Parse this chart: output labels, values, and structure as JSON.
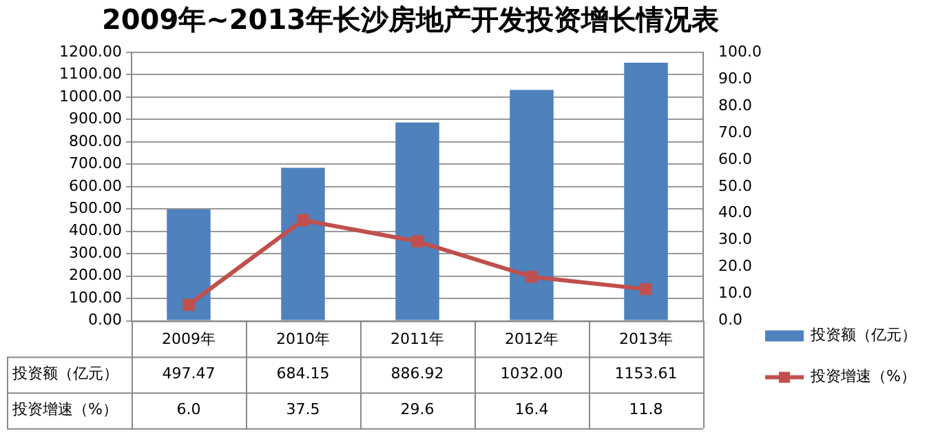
{
  "chart_data": {
    "type": "bar",
    "title": "2009年~2013年长沙房地产开发投资增长情况表",
    "categories": [
      "2009年",
      "2010年",
      "2011年",
      "2012年",
      "2013年"
    ],
    "series": [
      {
        "name": "投资额（亿元）",
        "color": "#4f81bd",
        "values": [
          497.47,
          684.15,
          886.92,
          1032.0,
          1153.61
        ],
        "value_labels": [
          "497.47",
          "684.15",
          "886.92",
          "1032.00",
          "1153.61"
        ]
      },
      {
        "name": "投资增速（%）",
        "type": "line",
        "axis": "y2",
        "color": "#c0504d",
        "values": [
          6.0,
          37.5,
          29.6,
          16.4,
          11.8
        ],
        "value_labels": [
          "6.0",
          "37.5",
          "29.6",
          "16.4",
          "11.8"
        ]
      }
    ],
    "ylim": [
      0,
      1200
    ],
    "yticks": [
      {
        "value": 0,
        "label": "0.00"
      },
      {
        "value": 100,
        "label": "100.00"
      },
      {
        "value": 200,
        "label": "200.00"
      },
      {
        "value": 300,
        "label": "300.00"
      },
      {
        "value": 400,
        "label": "400.00"
      },
      {
        "value": 500,
        "label": "500.00"
      },
      {
        "value": 600,
        "label": "600.00"
      },
      {
        "value": 700,
        "label": "700.00"
      },
      {
        "value": 800,
        "label": "800.00"
      },
      {
        "value": 900,
        "label": "900.00"
      },
      {
        "value": 1000,
        "label": "1000.00"
      },
      {
        "value": 1100,
        "label": "1100.00"
      },
      {
        "value": 1200,
        "label": "1200.00"
      }
    ],
    "y2lim": [
      0,
      100
    ],
    "y2ticks": [
      {
        "value": 0,
        "label": "0.0"
      },
      {
        "value": 10,
        "label": "10.0"
      },
      {
        "value": 20,
        "label": "20.0"
      },
      {
        "value": 30,
        "label": "30.0"
      },
      {
        "value": 40,
        "label": "40.0"
      },
      {
        "value": 50,
        "label": "50.0"
      },
      {
        "value": 60,
        "label": "60.0"
      },
      {
        "value": 70,
        "label": "70.0"
      },
      {
        "value": 80,
        "label": "80.0"
      },
      {
        "value": 90,
        "label": "90.0"
      },
      {
        "value": 100,
        "label": "100.0"
      }
    ],
    "grid": "y",
    "legend": "right",
    "marker": "square",
    "line_style": "solid"
  }
}
